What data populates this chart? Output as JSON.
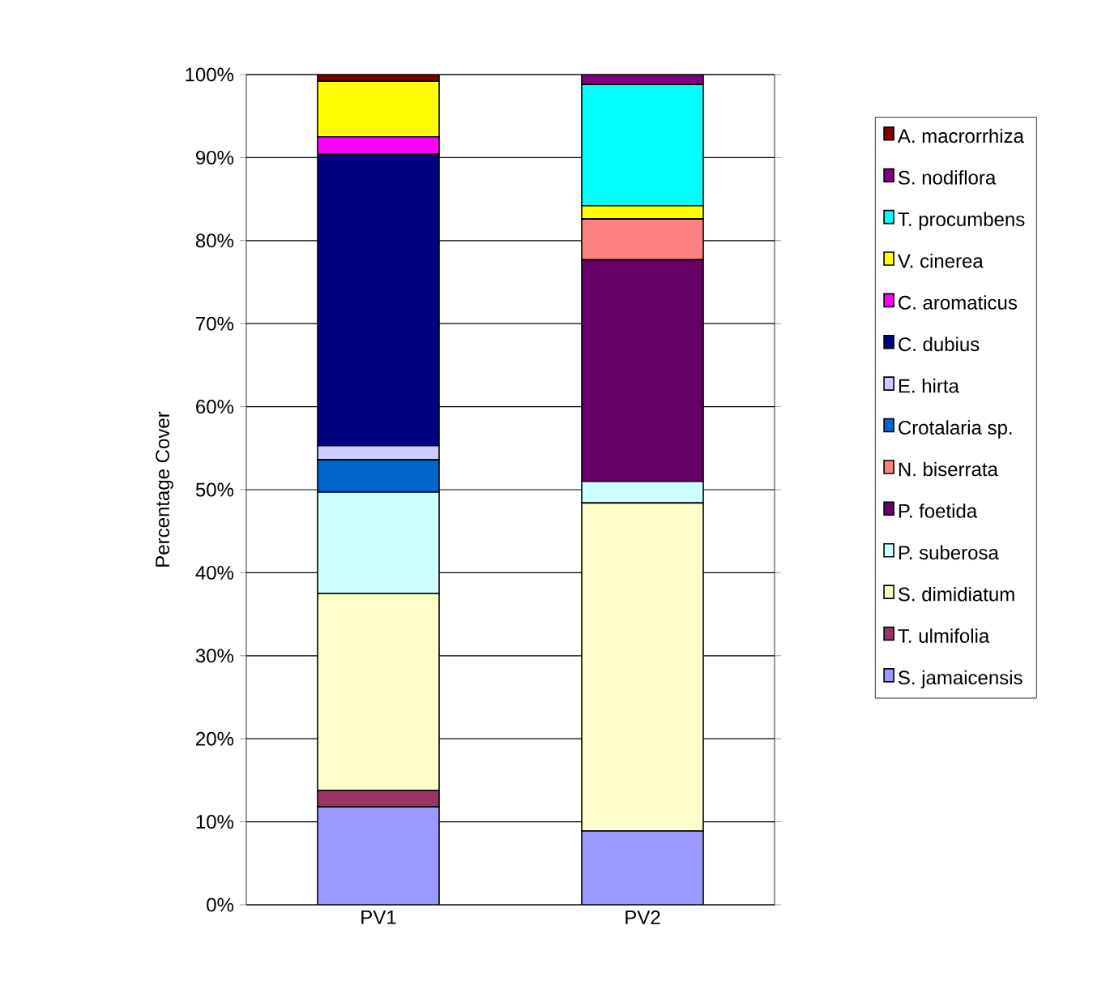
{
  "chart_data": {
    "type": "bar",
    "stacked": true,
    "ylabel": "Percentage Cover",
    "categories": [
      "PV1",
      "PV2"
    ],
    "ylim": [
      0,
      100
    ],
    "yticks": [
      {
        "value": 0,
        "label": "0%"
      },
      {
        "value": 10,
        "label": "10%"
      },
      {
        "value": 20,
        "label": "20%"
      },
      {
        "value": 30,
        "label": "30%"
      },
      {
        "value": 40,
        "label": "40%"
      },
      {
        "value": 50,
        "label": "50%"
      },
      {
        "value": 60,
        "label": "60%"
      },
      {
        "value": 70,
        "label": "70%"
      },
      {
        "value": 80,
        "label": "80%"
      },
      {
        "value": 90,
        "label": "90%"
      },
      {
        "value": 100,
        "label": "100%"
      }
    ],
    "grid": "y",
    "legend": "right",
    "series": [
      {
        "name": "S. jamaicensis",
        "color": "#9999ff",
        "values": [
          11.8,
          8.9
        ]
      },
      {
        "name": "T. ulmifolia",
        "color": "#993366",
        "values": [
          2.0,
          0
        ]
      },
      {
        "name": "S. dimidiatum",
        "color": "#ffffcc",
        "values": [
          23.7,
          39.5
        ]
      },
      {
        "name": "P. suberosa",
        "color": "#ccffff",
        "values": [
          12.2,
          2.6
        ]
      },
      {
        "name": "P. foetida",
        "color": "#660066",
        "values": [
          0,
          26.7
        ]
      },
      {
        "name": "N. biserrata",
        "color": "#ff8080",
        "values": [
          0,
          4.9
        ]
      },
      {
        "name": "Crotalaria sp.",
        "color": "#0066cc",
        "values": [
          3.9,
          0
        ]
      },
      {
        "name": "E. hirta",
        "color": "#ccccff",
        "values": [
          1.7,
          0
        ]
      },
      {
        "name": "C. dubius",
        "color": "#000080",
        "values": [
          35.1,
          0
        ]
      },
      {
        "name": "C. aromaticus",
        "color": "#ff00ff",
        "values": [
          2.1,
          0
        ]
      },
      {
        "name": "V. cinerea",
        "color": "#ffff00",
        "values": [
          6.7,
          1.6
        ]
      },
      {
        "name": "T. procumbens",
        "color": "#00ffff",
        "values": [
          0,
          14.6
        ]
      },
      {
        "name": "S. nodiflora",
        "color": "#800080",
        "values": [
          0,
          1.2
        ]
      },
      {
        "name": "A. macrorrhiza",
        "color": "#800000",
        "values": [
          0.8,
          0
        ]
      }
    ]
  }
}
